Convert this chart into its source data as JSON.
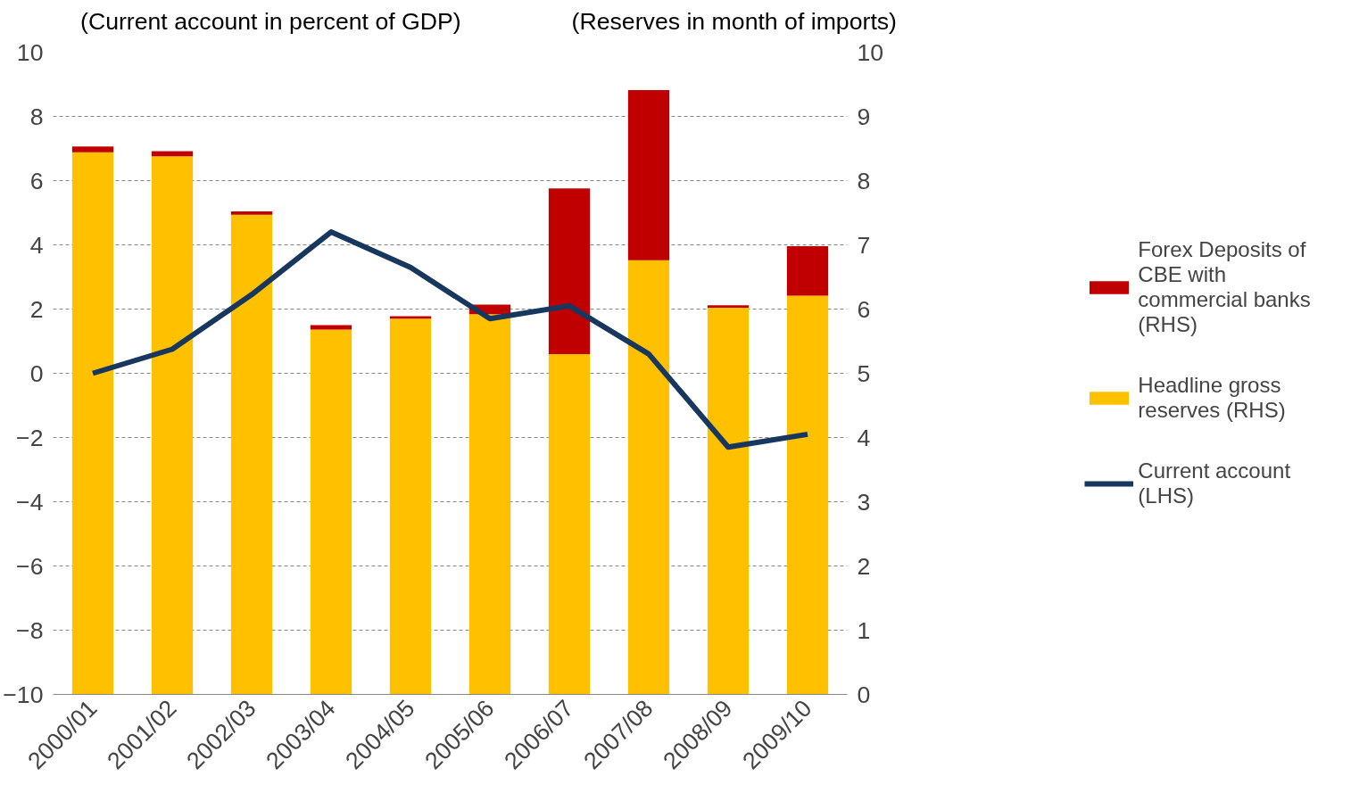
{
  "chart_data": {
    "type": "bar",
    "stacked": true,
    "categories": [
      "2000/01",
      "2001/02",
      "2002/03",
      "2003/04",
      "2004/05",
      "2005/06",
      "2006/07",
      "2007/08",
      "2008/09",
      "2009/10"
    ],
    "ylabel": "(Current account in percent of GDP)",
    "y2label": "(Reserves in month of imports)",
    "series": [
      {
        "name": "Headline gross reserves (RHS)",
        "color": "#ffc000",
        "axis": "y2",
        "values": [
          8.44,
          8.38,
          7.47,
          5.68,
          5.85,
          5.92,
          5.3,
          6.76,
          6.02,
          6.21
        ]
      },
      {
        "name": "Forex Deposits of CBE with commercial banks (RHS)",
        "color": "#c00000",
        "axis": "y2",
        "values": [
          0.09,
          0.08,
          0.05,
          0.07,
          0.04,
          0.15,
          2.58,
          2.65,
          0.04,
          0.77
        ]
      },
      {
        "name": "Current account (LHS)",
        "type": "line",
        "color": "#17375e",
        "values": [
          0.0,
          0.75,
          2.45,
          4.4,
          3.3,
          1.7,
          2.1,
          0.6,
          -2.3,
          -1.9
        ]
      }
    ],
    "ylim": [
      -10,
      10
    ],
    "yticks": [
      -10,
      -8,
      -6,
      -4,
      -2,
      0,
      2,
      4,
      6,
      8,
      10
    ],
    "y2lim": [
      0,
      10
    ],
    "y2ticks": [
      0,
      1,
      2,
      3,
      4,
      5,
      6,
      7,
      8,
      9,
      10
    ],
    "grid": "y",
    "legend": "right",
    "line_style": "solid",
    "marker": "none"
  }
}
